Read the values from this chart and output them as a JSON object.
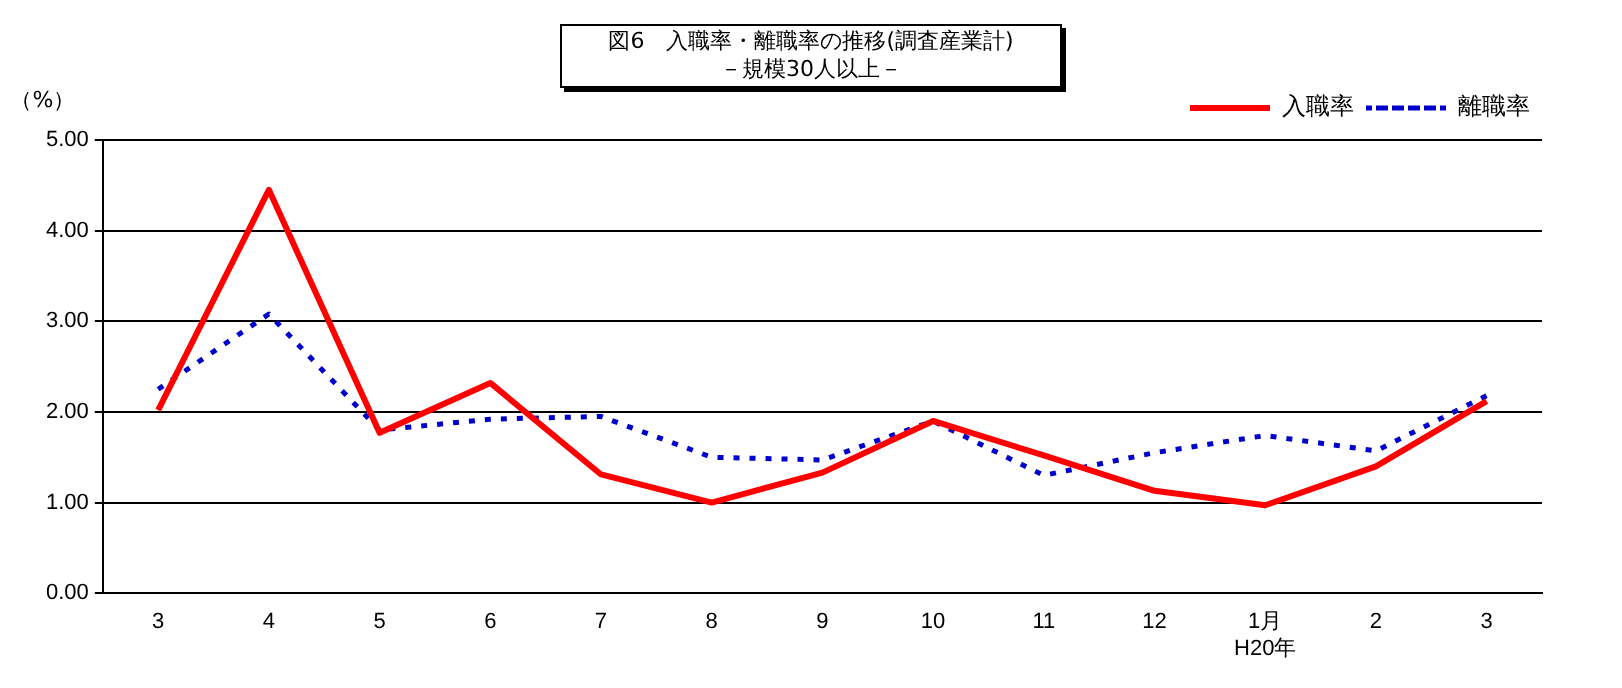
{
  "chart_data": {
    "type": "line",
    "title": "図6　入職率・離職率の推移(調査産業計)\n－規模30人以上－",
    "ylabel": "（%）",
    "categories": [
      "3",
      "4",
      "5",
      "6",
      "7",
      "8",
      "9",
      "10",
      "11",
      "12",
      "1月\nH20年",
      "2",
      "3"
    ],
    "series": [
      {
        "name": "入職率",
        "color": "#ff0000",
        "line_style": "solid",
        "values": [
          2.02,
          4.45,
          1.77,
          2.32,
          1.31,
          1.0,
          1.33,
          1.9,
          1.52,
          1.13,
          0.97,
          1.4,
          2.12
        ]
      },
      {
        "name": "離職率",
        "color": "#0000cc",
        "line_style": "dotted",
        "values": [
          2.25,
          3.08,
          1.8,
          1.92,
          1.95,
          1.5,
          1.47,
          1.9,
          1.3,
          1.55,
          1.74,
          1.57,
          2.18
        ]
      }
    ],
    "ylim": [
      0,
      5
    ],
    "yticks": [
      {
        "value": 0,
        "label": "0.00"
      },
      {
        "value": 1,
        "label": "1.00"
      },
      {
        "value": 2,
        "label": "2.00"
      },
      {
        "value": 3,
        "label": "3.00"
      },
      {
        "value": 4,
        "label": "4.00"
      },
      {
        "value": 5,
        "label": "5.00"
      }
    ],
    "grid": "y",
    "legend": "top right",
    "marker": "none"
  }
}
